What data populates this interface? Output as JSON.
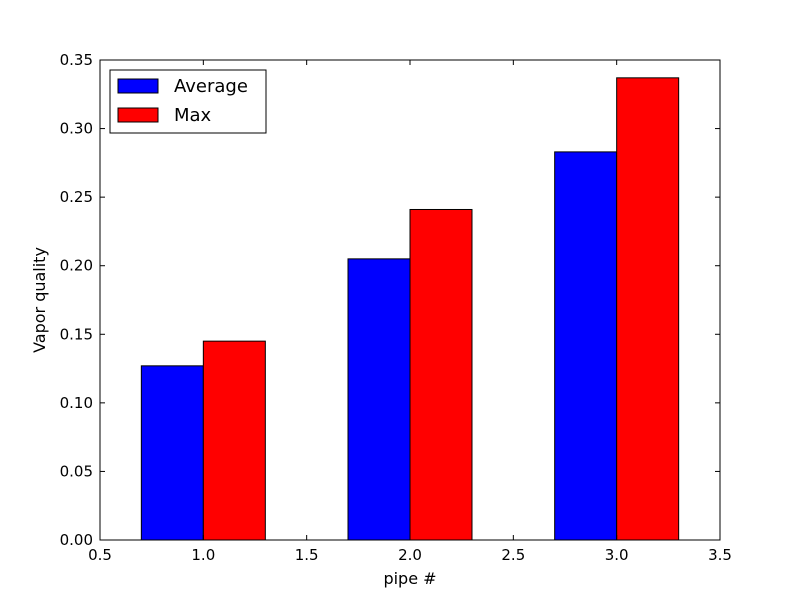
{
  "chart_data": {
    "type": "bar",
    "title": "",
    "xlabel": "pipe #",
    "ylabel": "Vapor quality",
    "xlim": [
      0.5,
      3.5
    ],
    "ylim": [
      0.0,
      0.35
    ],
    "x": [
      1.0,
      2.0,
      3.0
    ],
    "bar_width": 0.3,
    "xticks": [
      "0.5",
      "1.0",
      "1.5",
      "2.0",
      "2.5",
      "3.0",
      "3.5"
    ],
    "yticks": [
      "0.00",
      "0.05",
      "0.10",
      "0.15",
      "0.20",
      "0.25",
      "0.30",
      "0.35"
    ],
    "grid": false,
    "legend_position": "top-left",
    "series": [
      {
        "name": "Average",
        "color": "#0000ff",
        "values": [
          0.127,
          0.205,
          0.283
        ]
      },
      {
        "name": "Max",
        "color": "#ff0000",
        "values": [
          0.145,
          0.241,
          0.337
        ]
      }
    ]
  }
}
